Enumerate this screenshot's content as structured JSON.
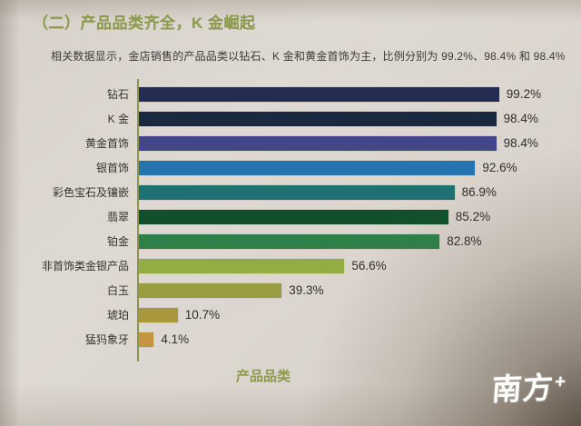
{
  "page": {
    "title": "（二）产品品类齐全，K 金崛起",
    "subtitle": "相关数据显示，金店销售的产品品类以钻石、K 金和黄金首饰为主，比例分别为 99.2%、98.4% 和 98.4%",
    "logo": {
      "text": "南方",
      "plus": "+"
    }
  },
  "chart_data": {
    "type": "bar",
    "orientation": "horizontal",
    "title": "",
    "xlabel": "产品品类",
    "ylabel": "",
    "xlim": [
      0,
      100
    ],
    "grid": false,
    "legend": false,
    "categories": [
      "钻石",
      "K 金",
      "黄金首饰",
      "银首饰",
      "彩色宝石及镶嵌",
      "翡翠",
      "铂金",
      "非首饰类金银产品",
      "白玉",
      "琥珀",
      "猛犸象牙"
    ],
    "values": [
      99.2,
      98.4,
      98.4,
      92.6,
      86.9,
      85.2,
      82.8,
      56.6,
      39.3,
      10.7,
      4.1
    ],
    "value_labels": [
      "99.2%",
      "98.4%",
      "98.4%",
      "92.6%",
      "86.9%",
      "85.2%",
      "82.8%",
      "56.6%",
      "39.3%",
      "10.7%",
      "4.1%"
    ],
    "bar_colors": [
      "#252c52",
      "#1b2940",
      "#414689",
      "#2673ae",
      "#1f7071",
      "#11502a",
      "#2f8048",
      "#94ad43",
      "#999c40",
      "#a8973d",
      "#c3953e"
    ],
    "axis_color": "#8a9548"
  },
  "colors": {
    "title_text": "#8c9a4e",
    "subtitle_text": "#3d3b38",
    "category_text": "#35332f",
    "value_text": "#2f2d2a",
    "xlabel_text": "#8c9a4e",
    "logo_text": "#ffffff",
    "paper_background": "#dad4cd",
    "corner_shadow": "#4a3c2e"
  }
}
